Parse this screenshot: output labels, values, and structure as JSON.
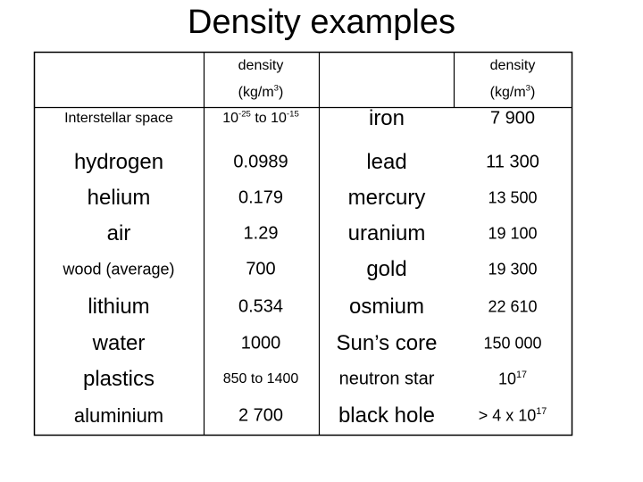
{
  "title": "Density examples",
  "table": {
    "header": [
      null,
      {
        "line1": "density",
        "line2": [
          "(kg/m",
          {
            "sup": "3"
          },
          ")"
        ]
      },
      null,
      {
        "line1": "density",
        "line2": [
          "(kg/m",
          {
            "sup": "3"
          },
          ")"
        ]
      }
    ],
    "rows": [
      [
        [
          "Interstellar space"
        ],
        [
          "10",
          {
            "sup": "-25"
          },
          " to 10",
          {
            "sup": "-15"
          }
        ],
        [
          "iron"
        ],
        [
          "7 900"
        ]
      ],
      [
        [
          "hydrogen"
        ],
        [
          "0.0989"
        ],
        [
          "lead"
        ],
        [
          "11 300"
        ]
      ],
      [
        [
          "helium"
        ],
        [
          "0.179"
        ],
        [
          "mercury"
        ],
        [
          "13 500"
        ]
      ],
      [
        [
          "air"
        ],
        [
          "1.29"
        ],
        [
          "uranium"
        ],
        [
          "19 100"
        ]
      ],
      [
        [
          "wood (average)"
        ],
        [
          "700"
        ],
        [
          "gold"
        ],
        [
          "19 300"
        ]
      ],
      [
        [
          "lithium"
        ],
        [
          "0.534"
        ],
        [
          "osmium"
        ],
        [
          "22 610"
        ]
      ],
      [
        [
          "water"
        ],
        [
          "1000"
        ],
        [
          "Sun’s core"
        ],
        [
          "150 000"
        ]
      ],
      [
        [
          "plastics"
        ],
        [
          "850 to 1400"
        ],
        [
          "neutron star"
        ],
        [
          "10",
          {
            "sup": "17"
          }
        ]
      ],
      [
        [
          "aluminium"
        ],
        [
          "2 700"
        ],
        [
          "black hole"
        ],
        [
          "> 4 x 10",
          {
            "sup": "17"
          }
        ]
      ]
    ]
  }
}
